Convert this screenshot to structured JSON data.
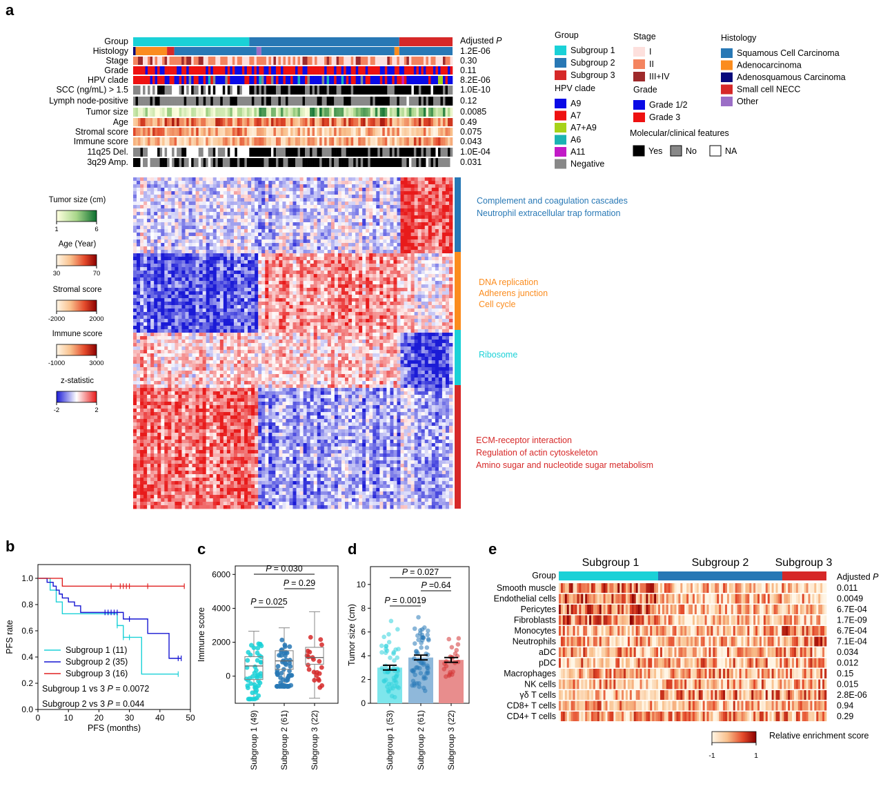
{
  "panel_labels": {
    "a": "a",
    "b": "b",
    "c": "c",
    "d": "d",
    "e": "e"
  },
  "colors": {
    "sub1": "#1ad1d7",
    "sub2": "#2878b5",
    "sub3": "#d62828",
    "scc": "#2878b5",
    "adeno": "#fb8c1e",
    "adenosq": "#08087a",
    "necc": "#d62828",
    "other": "#9b6ec6",
    "stage1": "#fde0dd",
    "stage2": "#f4845f",
    "stage3": "#9e2a2b",
    "a9": "#0a0ae6",
    "a7": "#ee1111",
    "a7a9": "#a6d21a",
    "a6": "#1ab3b3",
    "a11": "#c21ac7",
    "neg": "#888888",
    "grade12": "#0a0ae6",
    "grade3": "#ee1111",
    "yes": "#000000",
    "no": "#888888",
    "na": "#ffffff",
    "pathway_blue": "#2878b5",
    "pathway_orange": "#fb8c1e",
    "pathway_cyan": "#1ad1d7",
    "pathway_red": "#d62828"
  },
  "panel_a": {
    "adjusted_p_header": "Adjusted ",
    "adjusted_p_italic": "P",
    "tracks": [
      {
        "label": "Group",
        "p": ""
      },
      {
        "label": "Histology",
        "p": "1.2E-06"
      },
      {
        "label": "Stage",
        "p": "0.30"
      },
      {
        "label": "Grade",
        "p": "0.11"
      },
      {
        "label": "HPV clade",
        "p": "8.2E-06"
      },
      {
        "label": "SCC (ng/mL) > 1.5",
        "p": "1.0E-10"
      },
      {
        "label": "Lymph node-positive",
        "p": "0.12"
      },
      {
        "label": "Tumor size",
        "p": "0.0085"
      },
      {
        "label": "Age",
        "p": "0.49"
      },
      {
        "label": "Stromal score",
        "p": "0.075"
      },
      {
        "label": "Immune score",
        "p": "0.043"
      },
      {
        "label": "11q25   Del.",
        "p": "1.0E-04"
      },
      {
        "label": "3q29    Amp.",
        "p": "0.031"
      }
    ],
    "legend": {
      "group": {
        "title": "Group",
        "items": [
          "Subgroup 1",
          "Subgroup 2",
          "Subgroup 3"
        ]
      },
      "stage": {
        "title": "Stage",
        "items": [
          "I",
          "II",
          "III+IV"
        ]
      },
      "histology": {
        "title": "Histology",
        "items": [
          "Squamous Cell Carcinoma",
          "Adenocarcinoma",
          "Adenosquamous Carcinoma",
          "Small cell NECC",
          "Other"
        ]
      },
      "hpv": {
        "title": "HPV clade",
        "items": [
          "A9",
          "A7",
          "A7+A9",
          "A6",
          "A11",
          "Negative"
        ]
      },
      "grade": {
        "title": "Grade",
        "items": [
          "Grade 1/2",
          "Grade 3"
        ]
      },
      "features": {
        "title": "Molecular/clinical  features",
        "items": [
          "Yes",
          "No",
          "NA"
        ]
      }
    },
    "colorbars": [
      {
        "title": "Tumor size (cm)",
        "min": "1",
        "max": "6"
      },
      {
        "title": "Age (Year)",
        "min": "30",
        "max": "70"
      },
      {
        "title": "Stromal score",
        "min": "-2000",
        "max": "2000"
      },
      {
        "title": "Immune score",
        "min": "-1000",
        "max": "3000"
      },
      {
        "title": "z-statistic",
        "min": "-2",
        "max": "2"
      }
    ],
    "pathways": {
      "blue": [
        "Complement and coagulation cascades",
        "Neutrophil extracellular trap formation"
      ],
      "orange": [
        "DNA replication",
        "Adherens junction",
        "Cell cycle"
      ],
      "cyan": [
        "Ribosome"
      ],
      "red": [
        "ECM-receptor interaction",
        "Regulation of actin cytoskeleton",
        "Amino sugar and nucleotide sugar metabolism"
      ]
    }
  },
  "chart_data": [
    {
      "id": "b",
      "type": "line",
      "title": "",
      "xlabel": "PFS (months)",
      "ylabel": "PFS rate",
      "xlim": [
        0,
        50
      ],
      "ylim": [
        0,
        1.0
      ],
      "xticks": [
        "0",
        "10",
        "20",
        "30",
        "40",
        "50"
      ],
      "yticks": [
        "0.0",
        "0.2",
        "0.4",
        "0.6",
        "0.8",
        "1.0"
      ],
      "series": [
        {
          "name": "Subgroup 1 (11)",
          "color": "#1ad1d7",
          "x": [
            0,
            4,
            4,
            6,
            6,
            8,
            8,
            26,
            26,
            28,
            28,
            34,
            34,
            46
          ],
          "y": [
            1,
            1,
            0.91,
            0.91,
            0.82,
            0.82,
            0.73,
            0.73,
            0.64,
            0.64,
            0.55,
            0.55,
            0.27,
            0.27
          ],
          "censors_x": [
            26,
            28,
            30,
            46
          ]
        },
        {
          "name": "Subgroup 2 (35)",
          "color": "#1414d2",
          "x": [
            0,
            3,
            3,
            5,
            5,
            6,
            6,
            7,
            7,
            8,
            8,
            10,
            10,
            12,
            12,
            14,
            14,
            28,
            28,
            36,
            36,
            43,
            43,
            47
          ],
          "y": [
            1,
            1,
            0.97,
            0.97,
            0.94,
            0.94,
            0.91,
            0.91,
            0.88,
            0.88,
            0.85,
            0.85,
            0.82,
            0.82,
            0.79,
            0.79,
            0.74,
            0.74,
            0.69,
            0.69,
            0.58,
            0.58,
            0.39,
            0.39
          ],
          "censors_x": [
            22,
            23,
            24,
            25,
            26,
            30,
            46,
            47
          ]
        },
        {
          "name": "Subgroup 3 (16)",
          "color": "#e02020",
          "x": [
            0,
            8,
            8,
            48
          ],
          "y": [
            1,
            1,
            0.94,
            0.94
          ],
          "censors_x": [
            24,
            27,
            28,
            29,
            30,
            36,
            48
          ]
        }
      ],
      "annotations": [
        {
          "text": "Subgroup 1 vs 3 ",
          "italic": "P",
          "value": " = 0.0072"
        },
        {
          "text": "Subgroup 2 vs 3 ",
          "italic": "P",
          "value": " = 0.044"
        }
      ]
    },
    {
      "id": "c",
      "type": "box",
      "ylabel": "Immune score",
      "ylim": [
        -1600,
        6500
      ],
      "yticks": [
        {
          "v": 0,
          "label": "0"
        },
        {
          "v": 2000,
          "label": "2000"
        },
        {
          "v": 4000,
          "label": "4000"
        },
        {
          "v": 6000,
          "label": "6000"
        }
      ],
      "categories": [
        "Subgroup 1 (49)",
        "Subgroup 2 (61)",
        "Subgroup 3 (22)"
      ],
      "colors": [
        "#1ad1d7",
        "#2878b5",
        "#d62828"
      ],
      "boxes": [
        {
          "min": -1350,
          "q1": -200,
          "median": 600,
          "q3": 1150,
          "max": 2650
        },
        {
          "min": -600,
          "q1": 400,
          "median": 900,
          "q3": 1500,
          "max": 2850
        },
        {
          "min": -1300,
          "q1": 700,
          "median": 1100,
          "q3": 1700,
          "max": 3800
        }
      ],
      "counts": [
        49,
        61,
        22
      ],
      "comparisons": [
        {
          "from": 0,
          "to": 1,
          "label": "= 0.025",
          "level": 0
        },
        {
          "from": 1,
          "to": 2,
          "label": "= 0.29",
          "level": 1
        },
        {
          "from": 0,
          "to": 2,
          "label": "= 0.030",
          "level": 2
        }
      ]
    },
    {
      "id": "d",
      "type": "bar",
      "ylabel": "Tumor size (cm)",
      "ylim": [
        0,
        11.5
      ],
      "yticks": [
        "0",
        "2",
        "4",
        "6",
        "8",
        "10"
      ],
      "categories": [
        "Subgroup 1 (53)",
        "Subgroup 2 (61)",
        "Subgroup 3 (22)"
      ],
      "colors": [
        "#7ee6ec",
        "#8fb8da",
        "#e88d8d"
      ],
      "dotcolors": [
        "#32d2dc",
        "#2a7ab8",
        "#d43434"
      ],
      "values": [
        3.0,
        3.85,
        3.65
      ],
      "errors": [
        0.2,
        0.2,
        0.2
      ],
      "ranges": [
        [
          0.5,
          7.0
        ],
        [
          0.6,
          7.3
        ],
        [
          1.8,
          5.5
        ]
      ],
      "counts": [
        53,
        61,
        22
      ],
      "comparisons": [
        {
          "from": 0,
          "to": 1,
          "label": "= 0.0019",
          "level": 0
        },
        {
          "from": 1,
          "to": 2,
          "label": "=0.64",
          "level": 1
        },
        {
          "from": 0,
          "to": 2,
          "label": "= 0.027",
          "level": 2
        }
      ]
    }
  ],
  "panel_e": {
    "group_label": "Group",
    "subgroup_titles": [
      "Subgroup 1",
      "Subgroup 2",
      "Subgroup 3"
    ],
    "adjusted_header": "Adjusted ",
    "adjusted_italic": "P",
    "rows": [
      {
        "label": "Smooth muscle",
        "p": "0.011"
      },
      {
        "label": "Endothelial cells",
        "p": "0.0049"
      },
      {
        "label": "Pericytes",
        "p": "6.7E-04"
      },
      {
        "label": "Fibroblasts",
        "p": "1.7E-09"
      },
      {
        "label": "Monocytes",
        "p": "6.7E-04"
      },
      {
        "label": "Neutrophils",
        "p": "7.1E-04"
      },
      {
        "label": "aDC",
        "p": "0.034"
      },
      {
        "label": "pDC",
        "p": "0.012"
      },
      {
        "label": "Macrophages",
        "p": "0.15"
      },
      {
        "label": "NK cells",
        "p": "0.015"
      },
      {
        "label": "γδ T cells",
        "p": "2.8E-06"
      },
      {
        "label": "CD8+ T cells",
        "p": "0.94"
      },
      {
        "label": "CD4+ T cells",
        "p": "0.29"
      }
    ],
    "colorbar": {
      "title": "Relative enrichment score",
      "min": "-1",
      "max": "1"
    }
  }
}
